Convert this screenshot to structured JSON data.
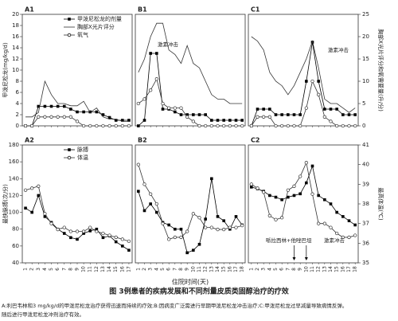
{
  "chart_data": [
    {
      "type": "line",
      "title": "A1",
      "ylabel": "甲泼尼松龙(mg/kg/d)",
      "ylim": [
        0,
        20
      ],
      "yticks": [
        0,
        2,
        4,
        6,
        8,
        10,
        12,
        14,
        16,
        18,
        20
      ],
      "series": [
        {
          "name": "甲泼尼松龙的剂量",
          "color": "#000",
          "marker": "square",
          "axis": "y",
          "values": [
            0,
            0,
            3.5,
            3.5,
            3.5,
            3.5,
            3.5,
            3,
            2.5,
            2.5,
            2.5,
            2.5,
            2,
            1.5,
            1,
            1,
            1
          ]
        },
        {
          "name": "胸部X光片评分",
          "color": "#333",
          "marker": "none",
          "axis": "y2",
          "values": [
            2,
            2,
            3,
            10,
            7,
            5,
            5,
            4.5,
            4.5,
            5.5,
            3,
            4,
            2,
            1.5,
            1.5,
            1,
            1
          ]
        },
        {
          "name": "氧气",
          "color": "#333",
          "marker": "circle",
          "axis": "y2",
          "values": [
            0,
            0,
            2,
            2,
            2,
            2,
            2,
            2,
            1,
            0,
            0,
            0,
            0,
            0,
            0,
            0,
            0
          ]
        }
      ]
    },
    {
      "type": "line",
      "title": "B1",
      "annotations": [
        "激素冲击"
      ],
      "series": [
        {
          "color": "#000",
          "marker": "square",
          "axis": "y",
          "values": [
            0,
            1,
            13,
            13,
            3,
            3,
            2.5,
            2,
            2,
            2,
            2,
            2,
            1,
            1,
            1,
            1,
            1,
            1
          ]
        },
        {
          "color": "#333",
          "marker": "none",
          "axis": "y2",
          "values": [
            12,
            15,
            20,
            23,
            23,
            17,
            16,
            14,
            18,
            14,
            13,
            10,
            7,
            6,
            6,
            5,
            5,
            5
          ]
        },
        {
          "color": "#333",
          "marker": "circle",
          "axis": "y2",
          "values": [
            5,
            6,
            8,
            10.5,
            5,
            4,
            4,
            4,
            2,
            1,
            0,
            0,
            0,
            0,
            0,
            0,
            0,
            0
          ]
        }
      ]
    },
    {
      "type": "line",
      "title": "C1",
      "annotations": [
        "激素冲击"
      ],
      "y2label": "胸部X光片评分和氧需要量(升/分)",
      "y2lim": [
        0,
        25
      ],
      "y2ticks": [
        0,
        5,
        10,
        15,
        20,
        25
      ],
      "series": [
        {
          "color": "#000",
          "marker": "square",
          "axis": "y",
          "values": [
            0,
            3,
            3,
            3,
            2,
            2,
            2,
            2,
            2,
            8,
            15,
            8,
            3,
            3,
            3,
            2,
            2,
            2
          ]
        },
        {
          "color": "#333",
          "marker": "none",
          "axis": "y2",
          "values": [
            20,
            19,
            17,
            12,
            10,
            9,
            7,
            9,
            12,
            15,
            19,
            13,
            6,
            5,
            5,
            4,
            3,
            4
          ]
        },
        {
          "color": "#333",
          "marker": "circle",
          "axis": "y2",
          "values": [
            0,
            2,
            2,
            2,
            0,
            0,
            0,
            0,
            0,
            4,
            10,
            7,
            2,
            1,
            0,
            0,
            0,
            0
          ]
        }
      ]
    },
    {
      "type": "line",
      "title": "A2",
      "ylabel": "最快脉搏(次/分)",
      "ylim": [
        40,
        180
      ],
      "yticks": [
        40,
        60,
        80,
        100,
        120,
        140,
        160,
        180
      ],
      "categories": [
        "1",
        "2",
        "3",
        "4",
        "5",
        "6",
        "7",
        "8",
        "9",
        "10",
        "11",
        "12",
        "13",
        "14",
        "15",
        "16",
        "17"
      ],
      "series": [
        {
          "name": "脉搏",
          "color": "#000",
          "marker": "square",
          "axis": "y",
          "values": [
            105,
            100,
            120,
            95,
            88,
            80,
            75,
            70,
            68,
            75,
            78,
            80,
            70,
            72,
            65,
            60,
            55
          ]
        },
        {
          "name": "体温",
          "color": "#333",
          "marker": "circle",
          "axis": "y2",
          "values": [
            38.7,
            38.8,
            38.9,
            37.5,
            37,
            36.7,
            36.8,
            36.6,
            36.6,
            36.6,
            36.8,
            36.6,
            36.5,
            36.4,
            36.3,
            36.2,
            36.1
          ]
        }
      ]
    },
    {
      "type": "line",
      "title": "B2",
      "xlabel": "住院时间(天)",
      "categories": [
        "1",
        "2",
        "3",
        "4",
        "5",
        "6",
        "7",
        "8",
        "9",
        "10",
        "11",
        "12",
        "13",
        "14",
        "15",
        "16",
        "17",
        "18"
      ],
      "series": [
        {
          "color": "#000",
          "marker": "square",
          "axis": "y",
          "values": [
            125,
            102,
            110,
            100,
            88,
            85,
            80,
            80,
            52,
            55,
            62,
            92,
            140,
            95,
            90,
            80,
            95,
            85
          ]
        },
        {
          "color": "#333",
          "marker": "circle",
          "axis": "y2",
          "values": [
            40,
            39,
            38.5,
            38,
            37,
            36.2,
            36.3,
            36.3,
            36.6,
            37.5,
            37.3,
            36.8,
            36.8,
            36.7,
            36.7,
            36.8,
            36.8,
            36.9
          ]
        }
      ]
    },
    {
      "type": "line",
      "title": "C2",
      "annotations": [
        "哌拉西林+他唑巴坦",
        "激素冲击"
      ],
      "y2label": "最高体温(℃)",
      "y2lim": [
        35,
        41
      ],
      "y2ticks": [
        35,
        36,
        37,
        38,
        39,
        40,
        41
      ],
      "categories": [
        "1",
        "2",
        "3",
        "4",
        "5",
        "6",
        "7",
        "8",
        "9",
        "10",
        "11",
        "12",
        "13",
        "14",
        "15",
        "16",
        "17",
        "18"
      ],
      "series": [
        {
          "color": "#000",
          "marker": "square",
          "axis": "y",
          "values": [
            130,
            128,
            125,
            120,
            118,
            115,
            118,
            120,
            122,
            135,
            155,
            120,
            115,
            110,
            100,
            95,
            90,
            85
          ]
        },
        {
          "color": "#333",
          "marker": "circle",
          "axis": "y2",
          "values": [
            39,
            38.8,
            38.6,
            37.4,
            37.2,
            37.3,
            38.7,
            38.9,
            39.4,
            40.1,
            38.5,
            37,
            37,
            36.8,
            36.5,
            36.3,
            36.3,
            36.4
          ]
        }
      ]
    }
  ],
  "caption": "图 3例患者的疾病发展和不同剂量皮质类固醇治疗的疗效",
  "note": [
    "A:利巴韦林和3 mg/kg/d的甲泼尼松龙治疗获得迅速而持续的疗效;B:因病变广泛需进行早期甲泼尼松龙冲击治疗;C:甲泼尼松龙过早减量导致病情反弹。",
    "随后进行甲泼尼松龙冲剂治疗有效。"
  ]
}
